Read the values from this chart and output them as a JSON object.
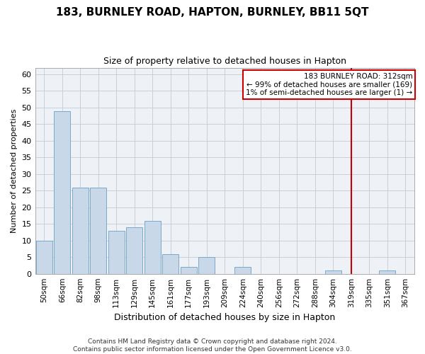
{
  "title": "183, BURNLEY ROAD, HAPTON, BURNLEY, BB11 5QT",
  "subtitle": "Size of property relative to detached houses in Hapton",
  "xlabel": "Distribution of detached houses by size in Hapton",
  "ylabel": "Number of detached properties",
  "bar_labels": [
    "50sqm",
    "66sqm",
    "82sqm",
    "98sqm",
    "113sqm",
    "129sqm",
    "145sqm",
    "161sqm",
    "177sqm",
    "193sqm",
    "209sqm",
    "224sqm",
    "240sqm",
    "256sqm",
    "272sqm",
    "288sqm",
    "304sqm",
    "319sqm",
    "335sqm",
    "351sqm",
    "367sqm"
  ],
  "bar_values": [
    10,
    49,
    26,
    26,
    13,
    14,
    16,
    6,
    2,
    5,
    0,
    2,
    0,
    0,
    0,
    0,
    1,
    0,
    0,
    1,
    0
  ],
  "bar_color": "#c8d8e8",
  "bar_edge_color": "#7aaac8",
  "highlight_line_index": 17,
  "highlight_line_label": "183 BURNLEY ROAD: 312sqm",
  "pct_smaller_label": "← 99% of detached houses are smaller (169)",
  "pct_larger_label": "1% of semi-detached houses are larger (1) →",
  "annotation_box_color": "#cc0000",
  "ylim": [
    0,
    62
  ],
  "yticks": [
    0,
    5,
    10,
    15,
    20,
    25,
    30,
    35,
    40,
    45,
    50,
    55,
    60
  ],
  "footer_line1": "Contains HM Land Registry data © Crown copyright and database right 2024.",
  "footer_line2": "Contains public sector information licensed under the Open Government Licence v3.0.",
  "bg_color": "#eef2f7",
  "grid_color": "#c8d0dc",
  "title_fontsize": 11,
  "subtitle_fontsize": 9,
  "ylabel_fontsize": 8,
  "xlabel_fontsize": 9
}
